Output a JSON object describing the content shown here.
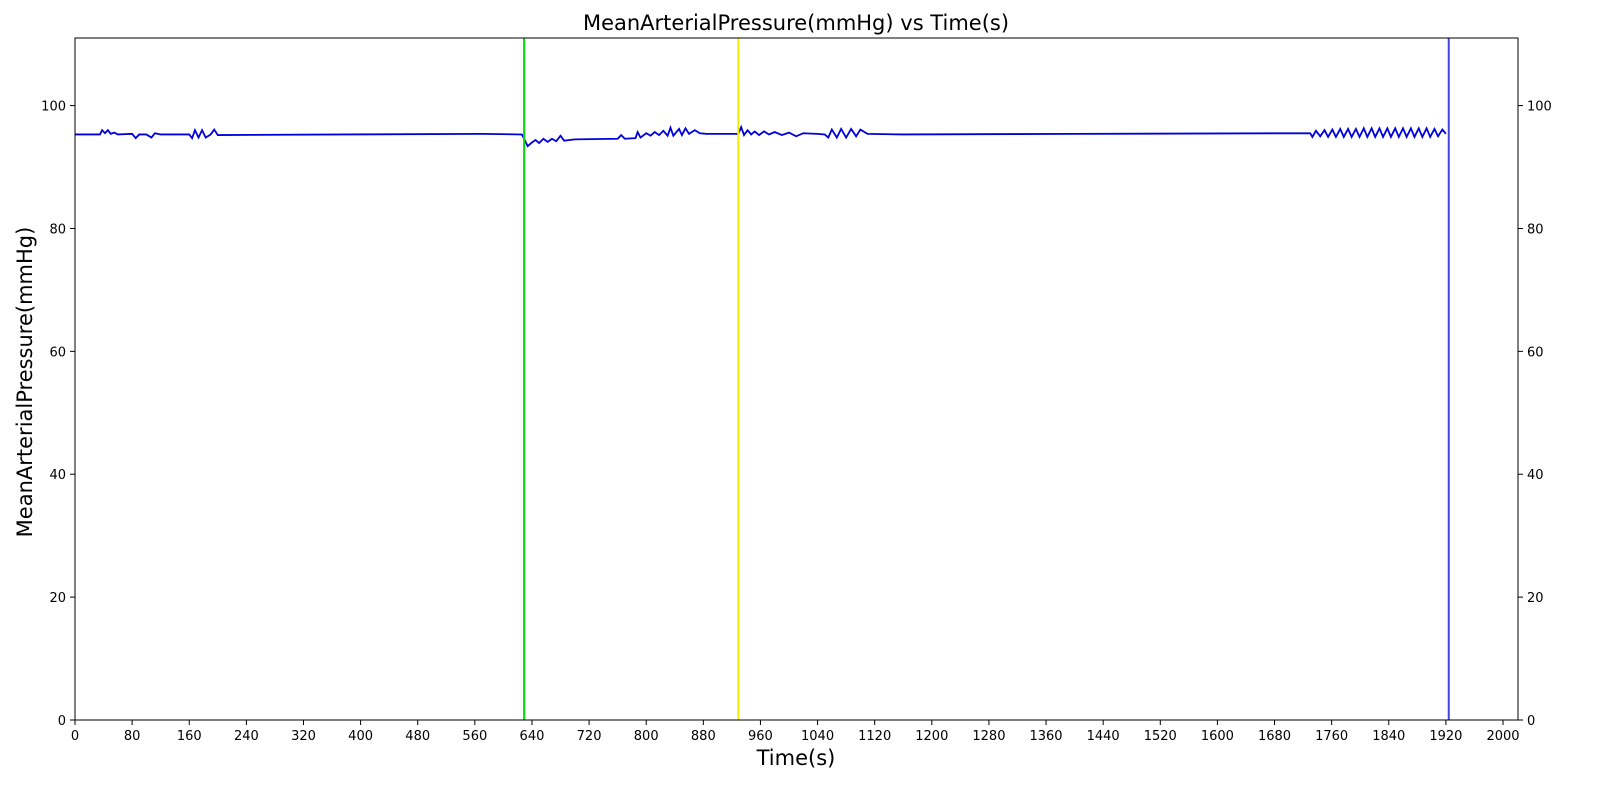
{
  "chart_data": {
    "type": "line",
    "title": "MeanArterialPressure(mmHg) vs Time(s)",
    "xlabel": "Time(s)",
    "ylabel": "MeanArterialPressure(mmHg)",
    "xlim": [
      0,
      2021
    ],
    "ylim": [
      0,
      111
    ],
    "y2lim": [
      0,
      111
    ],
    "xticks": [
      0,
      80,
      160,
      240,
      320,
      400,
      480,
      560,
      640,
      720,
      800,
      880,
      960,
      1040,
      1120,
      1200,
      1280,
      1360,
      1440,
      1520,
      1600,
      1680,
      1760,
      1840,
      1920,
      2000
    ],
    "yticks": [
      0,
      20,
      40,
      60,
      80,
      100
    ],
    "y2ticks": [
      0,
      20,
      40,
      60,
      80,
      100
    ],
    "grid": false,
    "vlines": [
      {
        "x": 629,
        "color": "#00dd00"
      },
      {
        "x": 929,
        "color": "#eeee00"
      },
      {
        "x": 1924,
        "color": "#4444dd"
      }
    ],
    "x": [
      0,
      35,
      38,
      42,
      46,
      50,
      55,
      60,
      80,
      85,
      90,
      100,
      107,
      112,
      120,
      160,
      164,
      168,
      173,
      178,
      183,
      190,
      195,
      200,
      380,
      570,
      626,
      634,
      640,
      645,
      650,
      656,
      662,
      668,
      674,
      680,
      685,
      700,
      760,
      765,
      770,
      785,
      788,
      792,
      800,
      806,
      812,
      818,
      824,
      830,
      834,
      838,
      846,
      850,
      855,
      860,
      868,
      875,
      885,
      929,
      933,
      937,
      942,
      947,
      952,
      958,
      965,
      972,
      980,
      990,
      1000,
      1010,
      1020,
      1040,
      1050,
      1055,
      1060,
      1067,
      1073,
      1080,
      1087,
      1094,
      1100,
      1110,
      1160,
      1400,
      1730,
      1733,
      1738,
      1744,
      1750,
      1755,
      1761,
      1766,
      1772,
      1777,
      1783,
      1788,
      1794,
      1799,
      1805,
      1810,
      1816,
      1821,
      1827,
      1832,
      1838,
      1843,
      1849,
      1854,
      1860,
      1865,
      1871,
      1876,
      1882,
      1887,
      1893,
      1898,
      1904,
      1909,
      1915,
      1920
    ],
    "series": [
      {
        "name": "MeanArterialPressure(mmHg)",
        "color": "#0000dd",
        "values": [
          95.3,
          95.3,
          96,
          95.5,
          96,
          95.4,
          95.6,
          95.3,
          95.4,
          94.7,
          95.3,
          95.3,
          94.8,
          95.5,
          95.3,
          95.3,
          94.7,
          96,
          94.8,
          96,
          94.8,
          95.3,
          96.1,
          95.2,
          95.3,
          95.4,
          95.3,
          93.4,
          94,
          94.4,
          93.9,
          94.6,
          94.1,
          94.6,
          94.2,
          95.1,
          94.3,
          94.5,
          94.6,
          95.2,
          94.6,
          94.7,
          95.7,
          94.8,
          95.5,
          95.1,
          95.7,
          95.2,
          95.9,
          95.1,
          96.4,
          95.1,
          96.2,
          95.2,
          96.3,
          95.4,
          96,
          95.5,
          95.4,
          95.4,
          96.5,
          95.2,
          96,
          95.3,
          95.8,
          95.2,
          95.8,
          95.3,
          95.7,
          95.2,
          95.6,
          95,
          95.5,
          95.4,
          95.3,
          94.8,
          96.1,
          94.8,
          96.2,
          94.8,
          96.2,
          95,
          96.1,
          95.4,
          95.3,
          95.4,
          95.5,
          94.9,
          95.9,
          95,
          96,
          94.9,
          96.1,
          94.9,
          96.2,
          94.9,
          96.2,
          94.9,
          96.2,
          94.9,
          96.3,
          94.9,
          96.3,
          94.9,
          96.3,
          94.9,
          96.3,
          94.9,
          96.3,
          94.9,
          96.3,
          94.9,
          96.3,
          94.9,
          96.3,
          94.9,
          96.3,
          94.9,
          96.2,
          95,
          96.1,
          95.4
        ]
      }
    ]
  }
}
